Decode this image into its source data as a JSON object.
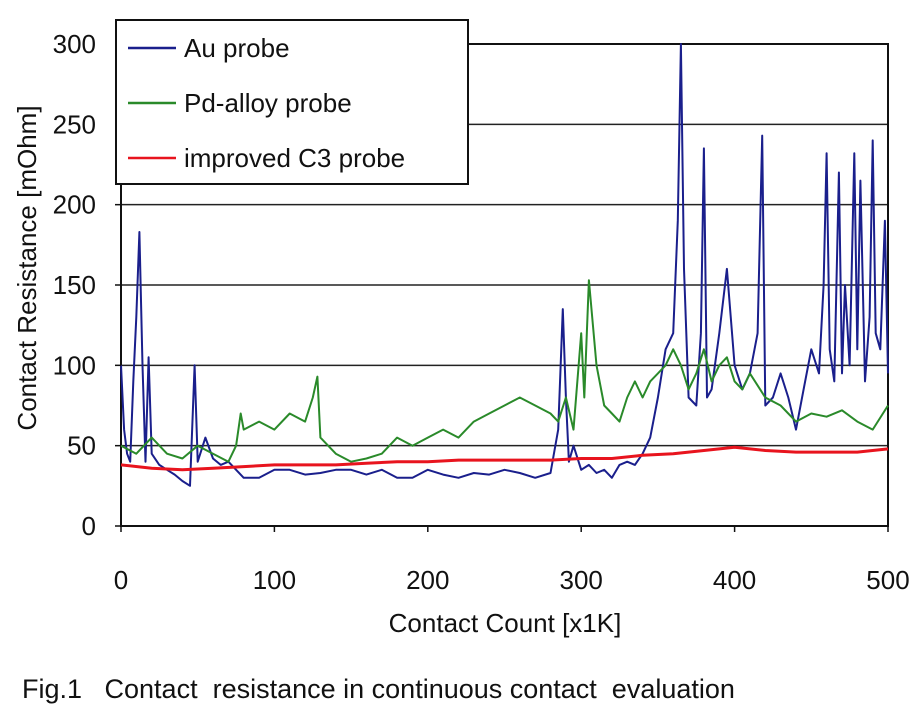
{
  "chart_data": {
    "type": "line",
    "xlabel": "Contact Count [x1K]",
    "ylabel": "Contact Resistance [mOhm]",
    "xlim": [
      0,
      500
    ],
    "ylim": [
      0,
      300
    ],
    "x_ticks": [
      0,
      100,
      200,
      300,
      400,
      500
    ],
    "y_ticks": [
      0,
      50,
      100,
      150,
      200,
      250,
      300
    ],
    "grid": "horizontal",
    "legend_position": "top-left",
    "series": [
      {
        "name": "Au probe",
        "color": "#1a1f8c",
        "x": [
          0,
          2,
          4,
          6,
          8,
          10,
          12,
          14,
          16,
          18,
          20,
          25,
          30,
          35,
          40,
          45,
          48,
          50,
          55,
          60,
          65,
          70,
          75,
          80,
          90,
          100,
          110,
          120,
          130,
          140,
          150,
          160,
          170,
          180,
          190,
          200,
          210,
          220,
          230,
          240,
          250,
          260,
          270,
          280,
          285,
          288,
          290,
          292,
          295,
          300,
          305,
          310,
          315,
          320,
          325,
          330,
          335,
          340,
          345,
          350,
          355,
          360,
          363,
          365,
          367,
          370,
          375,
          378,
          380,
          382,
          385,
          390,
          395,
          400,
          405,
          410,
          415,
          418,
          420,
          425,
          430,
          435,
          440,
          445,
          450,
          455,
          458,
          460,
          462,
          465,
          468,
          470,
          472,
          475,
          478,
          480,
          482,
          485,
          488,
          490,
          492,
          495,
          498,
          500
        ],
        "y": [
          100,
          60,
          45,
          40,
          90,
          130,
          183,
          100,
          40,
          105,
          45,
          38,
          35,
          32,
          28,
          25,
          100,
          40,
          55,
          42,
          38,
          40,
          35,
          30,
          30,
          35,
          35,
          32,
          33,
          35,
          35,
          32,
          35,
          30,
          30,
          35,
          32,
          30,
          33,
          32,
          35,
          33,
          30,
          33,
          60,
          135,
          80,
          40,
          50,
          35,
          38,
          33,
          35,
          30,
          38,
          40,
          38,
          45,
          55,
          80,
          110,
          120,
          190,
          300,
          160,
          80,
          75,
          120,
          235,
          80,
          85,
          120,
          160,
          100,
          85,
          95,
          120,
          243,
          75,
          80,
          95,
          80,
          60,
          85,
          110,
          95,
          150,
          232,
          110,
          90,
          220,
          95,
          150,
          100,
          232,
          110,
          215,
          90,
          130,
          240,
          120,
          110,
          190,
          95
        ]
      },
      {
        "name": "Pd-alloy probe",
        "color": "#2a8a2a",
        "x": [
          0,
          10,
          20,
          30,
          40,
          50,
          60,
          70,
          75,
          78,
          80,
          90,
          100,
          110,
          120,
          125,
          128,
          130,
          140,
          150,
          160,
          170,
          180,
          190,
          200,
          210,
          220,
          230,
          240,
          250,
          260,
          270,
          280,
          285,
          290,
          295,
          300,
          302,
          305,
          310,
          315,
          320,
          325,
          330,
          335,
          340,
          345,
          350,
          355,
          360,
          365,
          370,
          375,
          380,
          385,
          390,
          395,
          400,
          405,
          410,
          420,
          430,
          440,
          450,
          460,
          470,
          480,
          490,
          500
        ],
        "y": [
          50,
          45,
          55,
          45,
          42,
          50,
          45,
          40,
          50,
          70,
          60,
          65,
          60,
          70,
          65,
          80,
          93,
          55,
          45,
          40,
          42,
          45,
          55,
          50,
          55,
          60,
          55,
          65,
          70,
          75,
          80,
          75,
          70,
          65,
          80,
          60,
          120,
          80,
          153,
          100,
          75,
          70,
          65,
          80,
          90,
          80,
          90,
          95,
          100,
          110,
          100,
          85,
          95,
          110,
          90,
          100,
          105,
          90,
          85,
          95,
          80,
          75,
          65,
          70,
          68,
          72,
          65,
          60,
          75
        ]
      },
      {
        "name": "improved C3 probe",
        "color": "#e8141e",
        "x": [
          0,
          20,
          40,
          60,
          80,
          100,
          120,
          140,
          160,
          180,
          200,
          220,
          240,
          260,
          280,
          300,
          320,
          340,
          360,
          380,
          400,
          420,
          440,
          460,
          480,
          500
        ],
        "y": [
          38,
          36,
          35,
          36,
          37,
          38,
          38,
          38,
          39,
          40,
          40,
          41,
          41,
          41,
          41,
          42,
          42,
          44,
          45,
          47,
          49,
          47,
          46,
          46,
          46,
          48
        ]
      }
    ]
  },
  "caption": "Fig.1   Contact  resistance in continuous contact  evaluation"
}
